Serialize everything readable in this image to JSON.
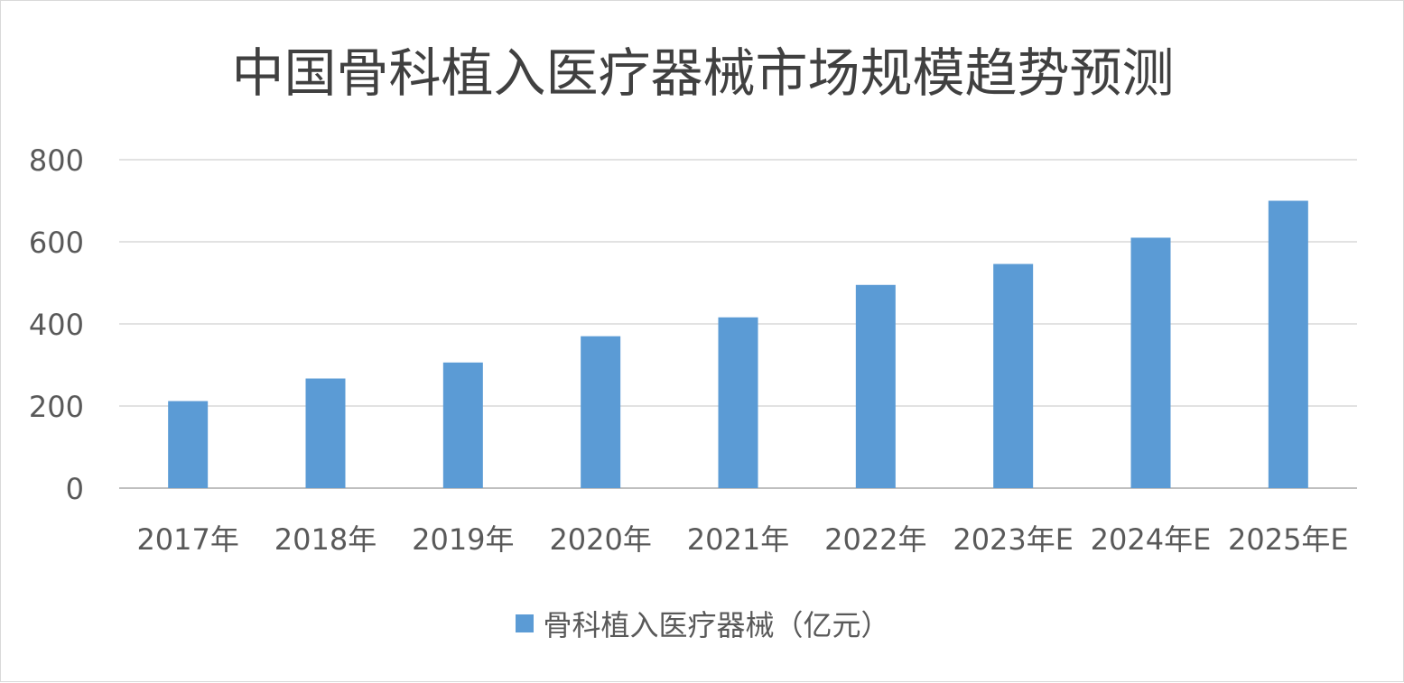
{
  "chart_data": {
    "type": "bar",
    "title": "中国骨科植入医疗器械市场规模趋势预测",
    "categories": [
      "2017年",
      "2018年",
      "2019年",
      "2020年",
      "2021年",
      "2022年",
      "2023年E",
      "2024年E",
      "2025年E"
    ],
    "series": [
      {
        "name": "骨科植入医疗器械（亿元）",
        "values": [
          212,
          267,
          306,
          370,
          416,
          495,
          546,
          610,
          700
        ]
      }
    ],
    "ylim": [
      0,
      800
    ],
    "yticks": [
      "0",
      "200",
      "400",
      "600",
      "800"
    ],
    "grid": true,
    "legend": "bottom",
    "colors": {
      "bar": "#5b9bd5",
      "grid": "#d9d9d9",
      "axis": "#bfbfbf",
      "text": "#595959"
    }
  }
}
